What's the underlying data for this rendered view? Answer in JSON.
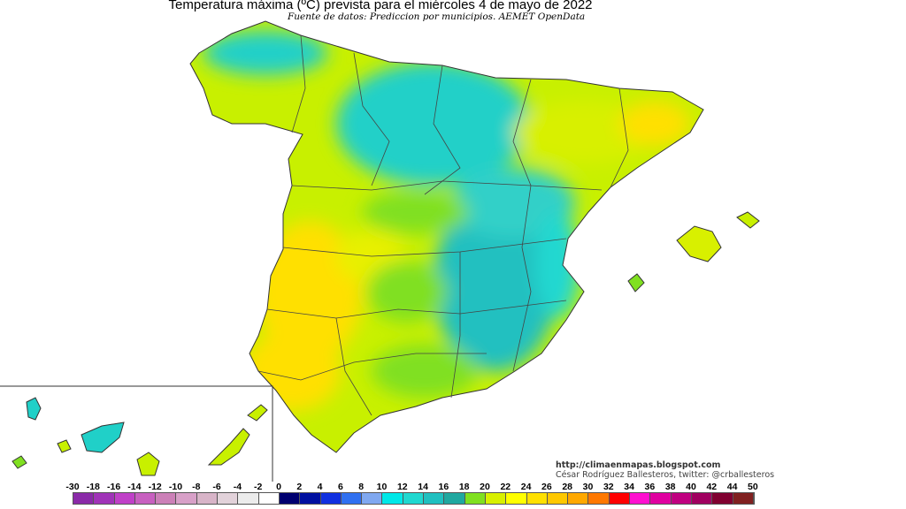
{
  "title": "Temperatura máxima (ºC) prevista para el miércoles 4 de mayo de 2022",
  "subtitle": "Fuente de datos: Prediccion por municipios. AEMET OpenData",
  "credits": {
    "url": "http://climaenmapas.blogspot.com",
    "author": "César Rodríguez Ballesteros, twitter: @crballesteros"
  },
  "map": {
    "region": "Spain (Peninsula, Balearic Islands, Canary Islands inset)",
    "colors": {
      "warm": "#ffe000",
      "mild": "#c8f000",
      "green": "#80e020",
      "cool": "#20d0c8",
      "cold": "#20a8a0",
      "border": "#333333"
    }
  },
  "legend": {
    "labels": [
      "-30",
      "-18",
      "-16",
      "-14",
      "-12",
      "-10",
      "-8",
      "-6",
      "-4",
      "-2",
      "0",
      "2",
      "4",
      "6",
      "8",
      "10",
      "12",
      "14",
      "16",
      "18",
      "20",
      "22",
      "24",
      "26",
      "28",
      "30",
      "32",
      "34",
      "36",
      "38",
      "40",
      "42",
      "44",
      "50"
    ],
    "colors": [
      "#8a2aa8",
      "#a033b8",
      "#c040c8",
      "#c860c0",
      "#cc80b8",
      "#d8a0c8",
      "#d8b4c8",
      "#e2d2da",
      "#ececec",
      "#ffffff",
      "#000070",
      "#0010a0",
      "#1030e0",
      "#3070f0",
      "#80a8f0",
      "#00e8e8",
      "#20d8d0",
      "#20c0c0",
      "#20a8a0",
      "#80e020",
      "#d8f000",
      "#ffff00",
      "#ffe000",
      "#ffc800",
      "#ffa800",
      "#ff7800",
      "#ff0000",
      "#ff10d0",
      "#e000a0",
      "#c00080",
      "#a00060",
      "#800030",
      "#802020"
    ]
  }
}
